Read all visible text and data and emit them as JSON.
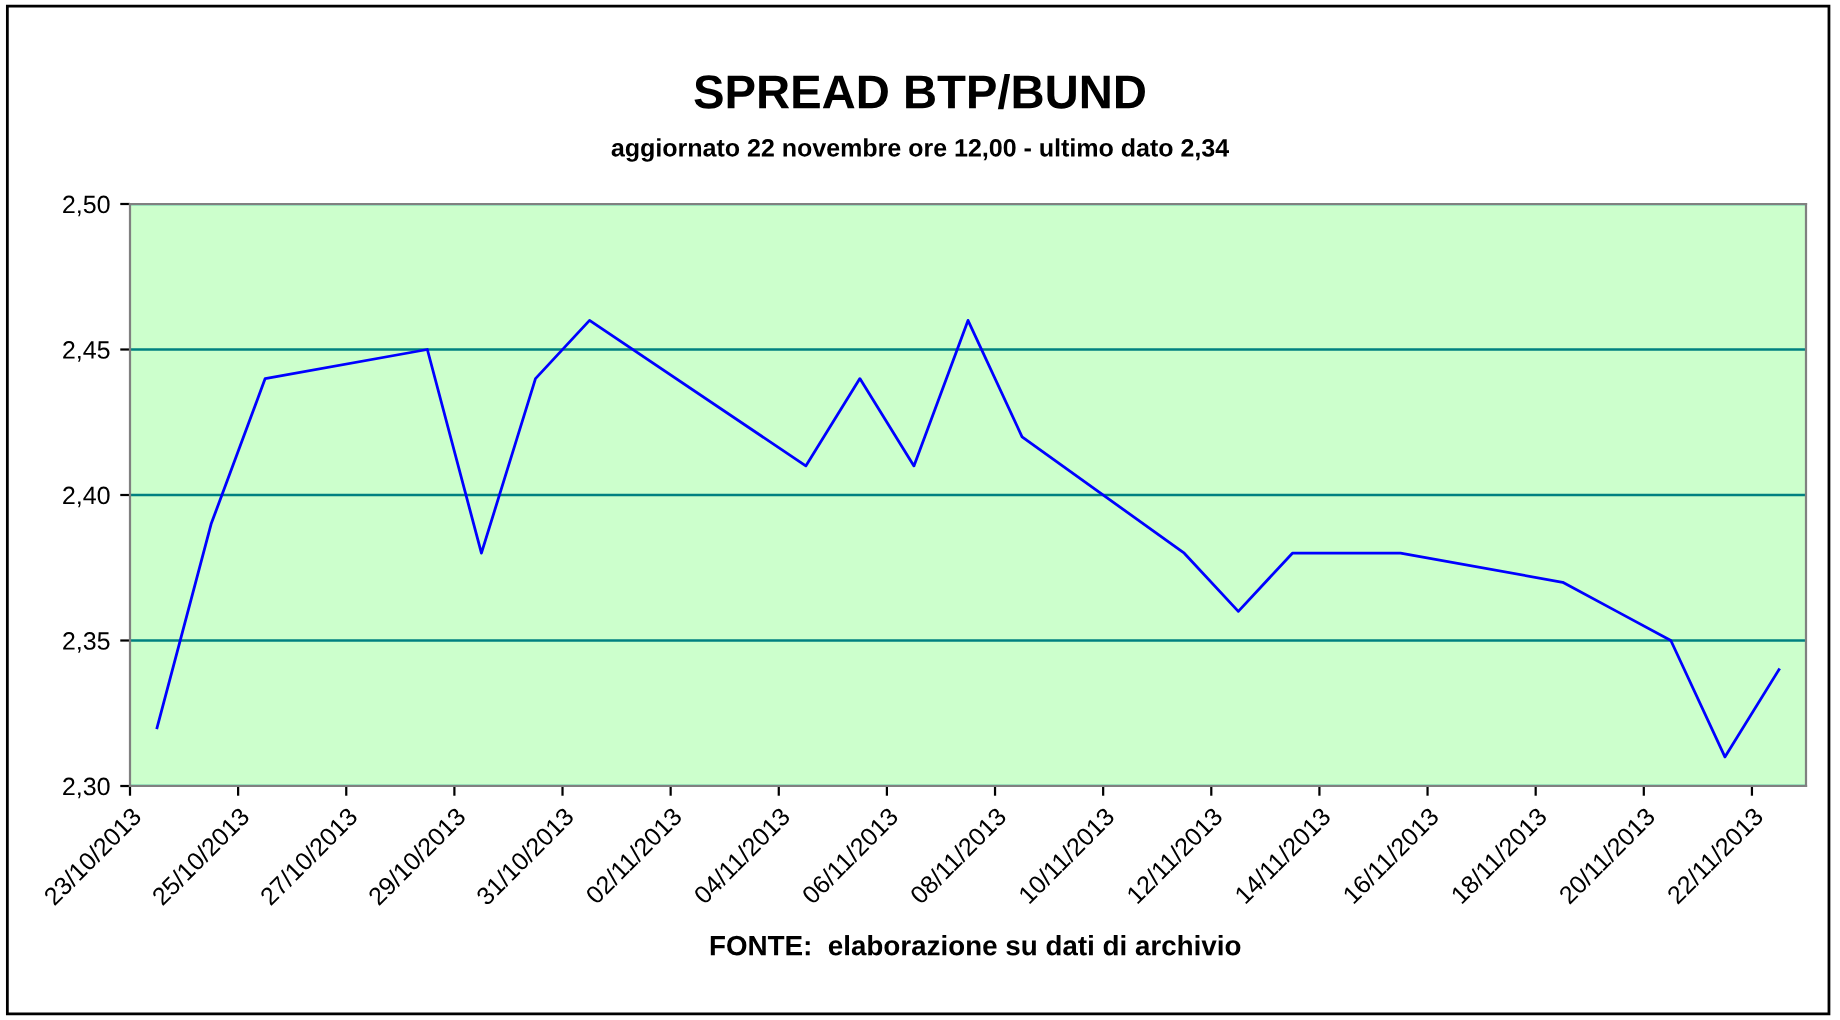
{
  "chart_data": {
    "type": "line",
    "title": "SPREAD BTP/BUND",
    "subtitle": "aggiornato 22 novembre ore 12,00 - ultimo dato 2,34",
    "annotations": [
      "FONTE:  elaborazione su dati di archivio"
    ],
    "x": [
      "2013-10-23T12:00",
      "2013-10-24T12:00",
      "2013-10-25T12:00",
      "2013-10-28T12:00",
      "2013-10-29T12:00",
      "2013-10-30T12:00",
      "2013-10-31T12:00",
      "2013-11-04T12:00",
      "2013-11-05T12:00",
      "2013-11-06T12:00",
      "2013-11-07T12:00",
      "2013-11-08T12:00",
      "2013-11-11T12:00",
      "2013-11-12T12:00",
      "2013-11-13T12:00",
      "2013-11-14T12:00",
      "2013-11-15T12:00",
      "2013-11-18T12:00",
      "2013-11-19T12:00",
      "2013-11-20T12:00",
      "2013-11-21T12:00",
      "2013-11-22T12:00"
    ],
    "series": [
      {
        "color": "#0000ff",
        "values": [
          2.32,
          2.39,
          2.44,
          2.45,
          2.38,
          2.44,
          2.46,
          2.41,
          2.44,
          2.41,
          2.46,
          2.42,
          2.38,
          2.36,
          2.38,
          2.38,
          2.38,
          2.37,
          2.36,
          2.35,
          2.31,
          2.34
        ]
      }
    ],
    "xlim": [
      "2013-10-23",
      "2013-11-23"
    ],
    "xticks": [
      {
        "value": "2013-10-23",
        "label": "23/10/2013"
      },
      {
        "value": "2013-10-25",
        "label": "25/10/2013"
      },
      {
        "value": "2013-10-27",
        "label": "27/10/2013"
      },
      {
        "value": "2013-10-29",
        "label": "29/10/2013"
      },
      {
        "value": "2013-10-31",
        "label": "31/10/2013"
      },
      {
        "value": "2013-11-02",
        "label": "02/11/2013"
      },
      {
        "value": "2013-11-04",
        "label": "04/11/2013"
      },
      {
        "value": "2013-11-06",
        "label": "06/11/2013"
      },
      {
        "value": "2013-11-08",
        "label": "08/11/2013"
      },
      {
        "value": "2013-11-10",
        "label": "10/11/2013"
      },
      {
        "value": "2013-11-12",
        "label": "12/11/2013"
      },
      {
        "value": "2013-11-14",
        "label": "14/11/2013"
      },
      {
        "value": "2013-11-16",
        "label": "16/11/2013"
      },
      {
        "value": "2013-11-18",
        "label": "18/11/2013"
      },
      {
        "value": "2013-11-20",
        "label": "20/11/2013"
      },
      {
        "value": "2013-11-22",
        "label": "22/11/2013"
      }
    ],
    "ylim": [
      2.3,
      2.5
    ],
    "yticks": [
      {
        "value": 2.3,
        "label": "2,30"
      },
      {
        "value": 2.35,
        "label": "2,35"
      },
      {
        "value": 2.4,
        "label": "2,40"
      },
      {
        "value": 2.45,
        "label": "2,45"
      },
      {
        "value": 2.5,
        "label": "2,50"
      }
    ],
    "grid": "y",
    "legend": false,
    "marker": "none",
    "line_style": "solid"
  }
}
